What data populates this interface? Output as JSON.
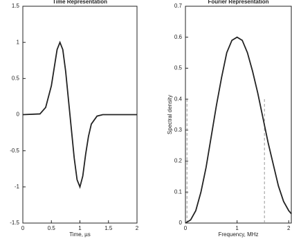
{
  "chart_data": [
    {
      "type": "line",
      "title": "Time Representation",
      "x_label": "Time, µs",
      "x": [
        0,
        0.3,
        0.4,
        0.5,
        0.55,
        0.6,
        0.65,
        0.7,
        0.75,
        0.8,
        0.85,
        0.9,
        0.95,
        1.0,
        1.05,
        1.1,
        1.15,
        1.2,
        1.3,
        1.4,
        2
      ],
      "series": [
        {
          "color": "#222222",
          "values": [
            0,
            0.01,
            0.1,
            0.4,
            0.65,
            0.9,
            1.0,
            0.9,
            0.6,
            0.2,
            -0.2,
            -0.6,
            -0.9,
            -1.0,
            -0.85,
            -0.55,
            -0.3,
            -0.13,
            -0.02,
            0,
            0
          ]
        }
      ],
      "xlim": [
        0,
        2
      ],
      "xticks": [
        0,
        0.5,
        1,
        1.5,
        2
      ],
      "ylim": [
        -1.5,
        1.5
      ],
      "yticks": [
        -1.5,
        -1,
        -0.5,
        0,
        0.5,
        1,
        1.5
      ]
    },
    {
      "type": "line",
      "title": "Fourier Representation",
      "x_label": "Frequency, MHz",
      "y_label": "Spectral density",
      "x": [
        0,
        0.1,
        0.2,
        0.3,
        0.4,
        0.5,
        0.6,
        0.7,
        0.8,
        0.9,
        1.0,
        1.1,
        1.2,
        1.3,
        1.4,
        1.5,
        1.6,
        1.7,
        1.8,
        1.9,
        2.0,
        2.05
      ],
      "series": [
        {
          "color": "#222222",
          "values": [
            0,
            0.01,
            0.04,
            0.1,
            0.18,
            0.28,
            0.38,
            0.47,
            0.55,
            0.59,
            0.6,
            0.59,
            0.55,
            0.49,
            0.42,
            0.34,
            0.26,
            0.19,
            0.12,
            0.07,
            0.04,
            0.03
          ]
        }
      ],
      "reference_lines": {
        "x": [
          0.03,
          1.53
        ],
        "ymax": 0.4,
        "color": "#999999"
      },
      "xlim": [
        0,
        2.05
      ],
      "xticks": [
        0,
        1,
        2
      ],
      "ylim": [
        0,
        0.7
      ],
      "yticks": [
        0,
        0.1,
        0.2,
        0.3,
        0.4,
        0.5,
        0.6,
        0.7
      ]
    }
  ]
}
